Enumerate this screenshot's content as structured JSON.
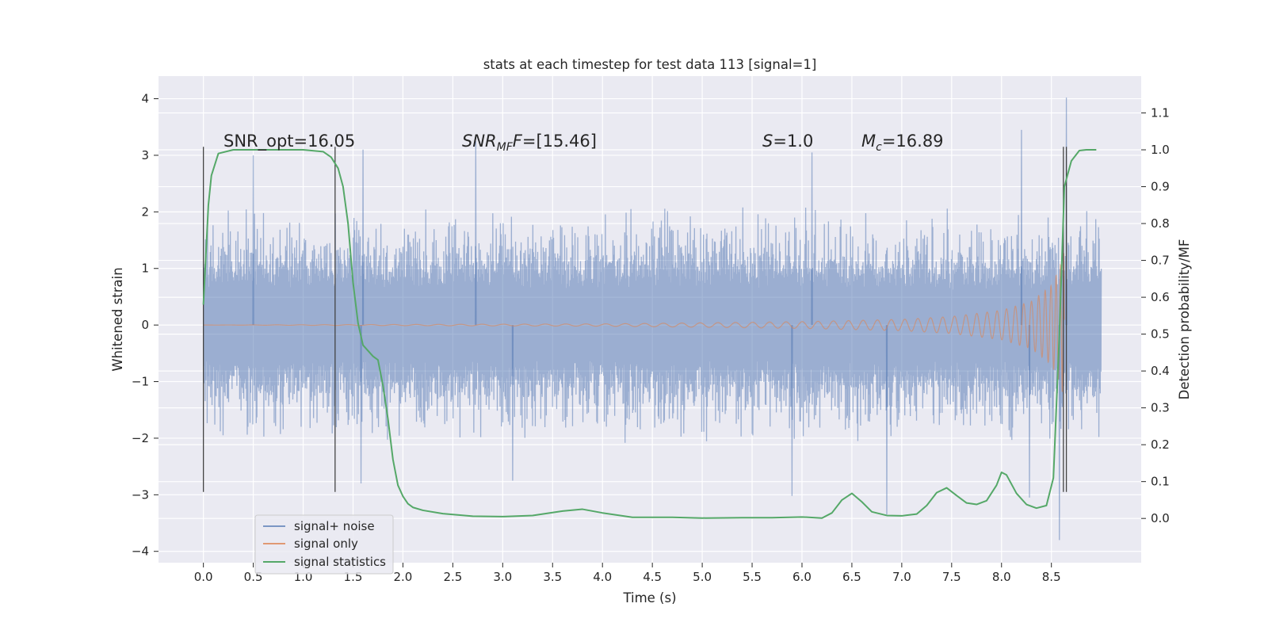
{
  "chart_data": {
    "type": "line",
    "title": "stats at each timestep for test data 113 [signal=1]",
    "xlabel": "Time (s)",
    "ylabel": "Whitened strain",
    "ylabel_right": "Detection probability/MF",
    "xlim": [
      -0.45,
      9.4
    ],
    "ylim": [
      -4.2,
      4.4
    ],
    "ylim_right": [
      -0.12,
      1.2
    ],
    "x_ticks": [
      0.0,
      0.5,
      1.0,
      1.5,
      2.0,
      2.5,
      3.0,
      3.5,
      4.0,
      4.5,
      5.0,
      5.5,
      6.0,
      6.5,
      7.0,
      7.5,
      8.0,
      8.5
    ],
    "x_tick_labels": [
      "0.0",
      "0.5",
      "1.0",
      "1.5",
      "2.0",
      "2.5",
      "3.0",
      "3.5",
      "4.0",
      "4.5",
      "5.0",
      "5.5",
      "6.0",
      "6.5",
      "7.0",
      "7.5",
      "8.0",
      "8.5"
    ],
    "y_ticks": [
      4,
      3,
      2,
      1,
      0,
      -1,
      -2,
      -3,
      -4
    ],
    "y_tick_labels": [
      "4",
      "3",
      "2",
      "1",
      "0",
      "−1",
      "−2",
      "−3",
      "−4"
    ],
    "y_right_ticks": [
      1.1,
      1.0,
      0.9,
      0.8,
      0.7,
      0.6,
      0.5,
      0.4,
      0.3,
      0.2,
      0.1,
      0.0
    ],
    "y_right_tick_labels": [
      "1.1",
      "1.0",
      "0.9",
      "0.8",
      "0.7",
      "0.6",
      "0.5",
      "0.4",
      "0.3",
      "0.2",
      "0.1",
      "0.0"
    ],
    "grid": true,
    "legend_position": "lower-left",
    "annotations": {
      "snr_opt": "SNR_opt=16.05",
      "snr_mf_main": "SNR",
      "snr_mf_sub": "MF",
      "snr_mf_value": "=[15.46]",
      "s_symbol": "S",
      "s_value": "=1.0",
      "mc_symbol": "M",
      "mc_sub": "c",
      "mc_value": "=16.89"
    },
    "vertical_markers": [
      {
        "x": 0.0,
        "ymin": -2.95,
        "ymax": 3.15
      },
      {
        "x": 1.32,
        "ymin": -2.95,
        "ymax": 3.15
      },
      {
        "x": 8.62,
        "ymin": -2.95,
        "ymax": 3.15
      },
      {
        "x": 8.65,
        "ymin": -2.95,
        "ymax": 3.15
      }
    ],
    "series": [
      {
        "name": "signal+ noise",
        "color": "#4c72b0",
        "opacity": 0.5,
        "x_start": 0.0,
        "x_end": 9.0,
        "core_amplitude": 1.3,
        "typical_peak_amplitude": 2.0,
        "max_value": 4.02,
        "min_value": -3.82,
        "extreme_spikes": [
          {
            "x": 0.5,
            "y": 3.0
          },
          {
            "x": 1.6,
            "y": 3.1
          },
          {
            "x": 2.73,
            "y": 3.25
          },
          {
            "x": 5.9,
            "y": -3.02
          },
          {
            "x": 6.1,
            "y": 3.05
          },
          {
            "x": 6.85,
            "y": -3.35
          },
          {
            "x": 8.2,
            "y": 3.45
          },
          {
            "x": 8.58,
            "y": -3.8
          },
          {
            "x": 8.65,
            "y": 4.02
          },
          {
            "x": 3.1,
            "y": -2.75
          },
          {
            "x": 1.58,
            "y": -2.8
          },
          {
            "x": 8.28,
            "y": -3.05
          }
        ]
      },
      {
        "name": "signal only",
        "color": "#dd8452",
        "opacity": 0.6,
        "type": "inspiral chirp",
        "x_start": 0.0,
        "x_merger": 8.63,
        "amplitude_envelope": [
          [
            0.0,
            0.0
          ],
          [
            4.0,
            0.02
          ],
          [
            5.0,
            0.04
          ],
          [
            6.0,
            0.06
          ],
          [
            7.0,
            0.1
          ],
          [
            7.5,
            0.15
          ],
          [
            8.0,
            0.26
          ],
          [
            8.3,
            0.42
          ],
          [
            8.5,
            0.7
          ],
          [
            8.58,
            1.0
          ],
          [
            8.63,
            1.32
          ]
        ]
      },
      {
        "name": "signal statistics",
        "color": "#55a868",
        "axis": "right",
        "x": [
          0.0,
          0.05,
          0.08,
          0.15,
          0.3,
          0.6,
          1.0,
          1.2,
          1.28,
          1.35,
          1.4,
          1.45,
          1.5,
          1.55,
          1.6,
          1.7,
          1.75,
          1.8,
          1.85,
          1.9,
          1.95,
          2.0,
          2.05,
          2.1,
          2.2,
          2.4,
          2.7,
          3.0,
          3.3,
          3.6,
          3.8,
          4.0,
          4.3,
          4.7,
          5.0,
          5.4,
          5.7,
          6.0,
          6.2,
          6.3,
          6.4,
          6.5,
          6.6,
          6.7,
          6.85,
          7.0,
          7.15,
          7.25,
          7.35,
          7.45,
          7.55,
          7.65,
          7.75,
          7.85,
          7.95,
          8.0,
          8.05,
          8.15,
          8.25,
          8.35,
          8.45,
          8.52,
          8.58,
          8.63,
          8.7,
          8.78,
          8.85,
          8.95
        ],
        "values": [
          0.58,
          0.85,
          0.93,
          0.99,
          1.0,
          1.0,
          1.0,
          0.995,
          0.98,
          0.95,
          0.9,
          0.8,
          0.64,
          0.53,
          0.47,
          0.44,
          0.43,
          0.36,
          0.27,
          0.16,
          0.09,
          0.06,
          0.04,
          0.03,
          0.022,
          0.013,
          0.006,
          0.005,
          0.008,
          0.02,
          0.025,
          0.015,
          0.003,
          0.003,
          0.001,
          0.002,
          0.002,
          0.004,
          0.001,
          0.015,
          0.05,
          0.068,
          0.045,
          0.018,
          0.008,
          0.007,
          0.012,
          0.035,
          0.07,
          0.083,
          0.062,
          0.042,
          0.038,
          0.048,
          0.09,
          0.125,
          0.118,
          0.068,
          0.038,
          0.028,
          0.035,
          0.11,
          0.5,
          0.9,
          0.97,
          0.998,
          1.0,
          1.0
        ]
      }
    ]
  }
}
